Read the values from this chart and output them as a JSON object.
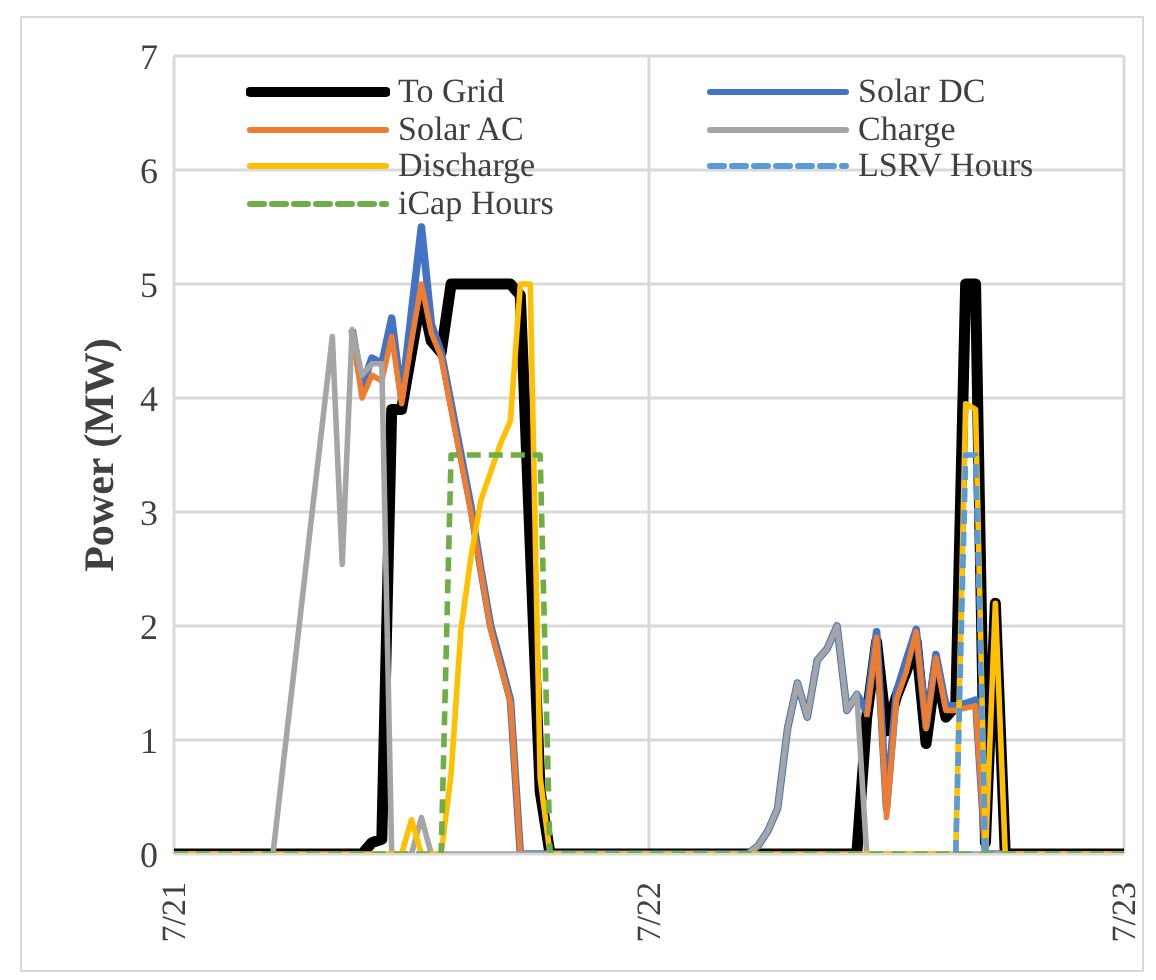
{
  "chart_data": {
    "type": "line",
    "ylabel": "Power (MW)",
    "ylim": [
      0,
      7
    ],
    "yticks": [
      0,
      1,
      2,
      3,
      4,
      5,
      6,
      7
    ],
    "grid": true,
    "legend": "top",
    "marker": "none",
    "categories": [
      "7/21",
      null,
      null,
      null,
      null,
      null,
      null,
      null,
      null,
      null,
      null,
      null,
      null,
      null,
      null,
      null,
      null,
      null,
      null,
      null,
      null,
      null,
      null,
      null,
      null,
      null,
      null,
      null,
      null,
      null,
      null,
      null,
      null,
      null,
      null,
      null,
      null,
      null,
      null,
      null,
      null,
      null,
      null,
      null,
      null,
      null,
      null,
      null,
      "7/22",
      null,
      null,
      null,
      null,
      null,
      null,
      null,
      null,
      null,
      null,
      null,
      null,
      null,
      null,
      null,
      null,
      null,
      null,
      null,
      null,
      null,
      null,
      null,
      null,
      null,
      null,
      null,
      null,
      null,
      null,
      null,
      null,
      null,
      null,
      null,
      null,
      null,
      null,
      null,
      null,
      null,
      null,
      null,
      null,
      null,
      null,
      null,
      "7/23"
    ],
    "series": [
      {
        "name": "To Grid",
        "color": "#000000",
        "values": [
          0,
          0,
          0,
          0,
          0,
          0,
          0,
          0,
          0,
          0,
          0,
          0,
          0,
          0,
          0,
          0,
          0,
          0,
          0,
          0,
          0.1,
          0.13,
          3.9,
          3.9,
          4.4,
          4.9,
          4.5,
          4.4,
          5,
          5,
          5,
          5,
          5,
          5,
          5,
          4.9,
          2.7,
          0.55,
          0,
          0,
          0,
          0,
          0,
          0,
          0,
          0,
          0,
          0,
          0,
          0,
          0,
          0,
          0,
          0,
          0,
          0,
          0,
          0,
          0,
          0,
          0,
          0,
          0,
          0,
          0,
          0,
          0,
          0,
          0,
          0,
          1.2,
          1.86,
          1.08,
          1.38,
          1.6,
          1.86,
          0.97,
          1.62,
          1.2,
          1.3,
          5,
          5,
          0.1,
          2.2,
          0,
          0,
          0,
          0,
          0,
          0,
          0,
          0,
          0,
          0,
          0,
          0,
          0
        ]
      },
      {
        "name": "Solar DC",
        "color": "#4472c4",
        "values": [
          null,
          null,
          null,
          null,
          null,
          null,
          null,
          null,
          null,
          null,
          null,
          null,
          null,
          null,
          null,
          null,
          null,
          null,
          4.6,
          4.1,
          4.35,
          4.3,
          4.7,
          4.0,
          4.75,
          5.5,
          4.65,
          4.4,
          3.95,
          3.5,
          3.05,
          2.5,
          2.0,
          1.68,
          1.35,
          0,
          0,
          0,
          0,
          0,
          0,
          0,
          0,
          0,
          0,
          0,
          0,
          0,
          0,
          0,
          0,
          0,
          0,
          0,
          0,
          0,
          0,
          0,
          0,
          0.07,
          0.2,
          0.4,
          1.1,
          1.5,
          1.2,
          1.7,
          1.8,
          2.0,
          1.26,
          1.4,
          1.25,
          1.95,
          0.4,
          1.42,
          1.7,
          1.97,
          1.12,
          1.75,
          1.3,
          1.3,
          1.32,
          1.35,
          0,
          0,
          0,
          null,
          null,
          null,
          null,
          null,
          null,
          null,
          null,
          null,
          null,
          null,
          null
        ]
      },
      {
        "name": "Solar AC",
        "color": "#ed7d31",
        "values": [
          null,
          null,
          null,
          null,
          null,
          null,
          null,
          null,
          null,
          null,
          null,
          null,
          null,
          null,
          null,
          null,
          null,
          null,
          4.6,
          4.0,
          4.2,
          4.15,
          4.54,
          3.95,
          4.5,
          5.0,
          4.57,
          4.36,
          3.9,
          3.45,
          3.0,
          2.48,
          1.97,
          1.65,
          1.33,
          0,
          0,
          null,
          null,
          null,
          null,
          null,
          null,
          null,
          null,
          null,
          null,
          null,
          null,
          null,
          null,
          null,
          null,
          null,
          null,
          null,
          null,
          null,
          null,
          null,
          null,
          null,
          null,
          null,
          null,
          null,
          null,
          null,
          null,
          null,
          1.2,
          1.9,
          0.32,
          1.35,
          1.6,
          1.95,
          1.1,
          1.72,
          1.26,
          1.26,
          1.28,
          1.3,
          0,
          0,
          0,
          null,
          null,
          null,
          null,
          null,
          null,
          null,
          null,
          null,
          null,
          null,
          null
        ]
      },
      {
        "name": "Charge",
        "color": "#a5a5a5",
        "values": [
          0,
          0,
          0,
          0,
          0,
          0,
          0,
          0,
          0,
          0,
          0,
          0.76,
          1.51,
          2.27,
          3.03,
          3.78,
          4.54,
          2.54,
          4.6,
          4.2,
          4.3,
          4.3,
          0,
          0,
          0,
          0.32,
          0,
          0,
          0,
          0,
          0,
          0,
          0,
          0,
          0,
          0,
          0,
          0,
          0,
          0,
          0,
          0,
          0,
          0,
          0,
          0,
          0,
          0,
          0,
          0,
          0,
          0,
          0,
          0,
          0,
          0,
          0,
          0,
          0,
          0.07,
          0.2,
          0.4,
          1.1,
          1.5,
          1.2,
          1.7,
          1.8,
          2.0,
          1.26,
          1.4,
          0,
          0,
          0,
          0,
          0,
          0,
          0,
          0,
          0,
          0,
          0,
          0,
          0,
          0,
          0,
          0,
          0,
          0,
          0,
          0,
          0,
          0,
          0,
          0,
          0,
          0,
          0
        ]
      },
      {
        "name": "Discharge",
        "color": "#ffc000",
        "values": [
          0,
          0,
          0,
          0,
          0,
          0,
          0,
          0,
          0,
          0,
          0,
          0,
          0,
          0,
          0,
          0,
          0,
          0,
          0,
          0,
          0,
          0,
          0,
          0,
          0.3,
          0,
          0,
          0,
          0.7,
          1.97,
          2.6,
          3.1,
          3.35,
          3.6,
          3.8,
          5,
          5,
          0.67,
          0,
          0,
          0,
          0,
          0,
          0,
          0,
          0,
          0,
          0,
          0,
          0,
          0,
          0,
          0,
          0,
          0,
          0,
          0,
          0,
          0,
          0,
          0,
          0,
          0,
          0,
          0,
          0,
          0,
          0,
          0,
          0,
          0,
          0,
          0,
          0,
          0,
          0,
          0,
          0,
          0,
          0,
          3.95,
          3.9,
          0,
          2.2,
          0,
          0,
          0,
          0,
          0,
          0,
          0,
          0,
          0,
          0,
          0,
          0,
          0
        ]
      },
      {
        "name": "LSRV Hours",
        "color": "#5b9bd5",
        "line_style": "dashed",
        "values": [
          null,
          null,
          null,
          null,
          null,
          null,
          null,
          null,
          null,
          null,
          null,
          null,
          null,
          null,
          null,
          null,
          null,
          null,
          null,
          null,
          null,
          null,
          null,
          null,
          null,
          null,
          null,
          null,
          null,
          null,
          null,
          null,
          null,
          null,
          null,
          null,
          null,
          null,
          null,
          null,
          null,
          null,
          null,
          null,
          null,
          null,
          null,
          null,
          null,
          null,
          null,
          null,
          null,
          null,
          null,
          null,
          null,
          null,
          null,
          null,
          null,
          null,
          null,
          null,
          null,
          null,
          null,
          null,
          null,
          null,
          null,
          null,
          null,
          null,
          null,
          null,
          null,
          null,
          null,
          0,
          3.5,
          3.5,
          0,
          null,
          null,
          null,
          null,
          null,
          null,
          null,
          null,
          null,
          null,
          null,
          null,
          null,
          null
        ]
      },
      {
        "name": "iCap Hours",
        "color": "#70ad47",
        "line_style": "dashed",
        "values": [
          0,
          0,
          0,
          0,
          0,
          0,
          0,
          0,
          0,
          0,
          0,
          0,
          0,
          0,
          0,
          0,
          0,
          0,
          0,
          0,
          0,
          0,
          0,
          0,
          0,
          0,
          0,
          0,
          3.5,
          3.5,
          3.5,
          3.5,
          3.5,
          3.5,
          3.5,
          3.5,
          3.5,
          3.5,
          0,
          0,
          0,
          0,
          0,
          0,
          0,
          0,
          0,
          0,
          0,
          0,
          0,
          0,
          0,
          0,
          0,
          0,
          0,
          0,
          0,
          0,
          0,
          0,
          0,
          0,
          0,
          0,
          0,
          0,
          0,
          0,
          0,
          0,
          0,
          0,
          0,
          0,
          0,
          0,
          0,
          0,
          0,
          0,
          0,
          0,
          0,
          0,
          0,
          0,
          0,
          0,
          0,
          0,
          0,
          0,
          0,
          0,
          0
        ]
      }
    ]
  }
}
